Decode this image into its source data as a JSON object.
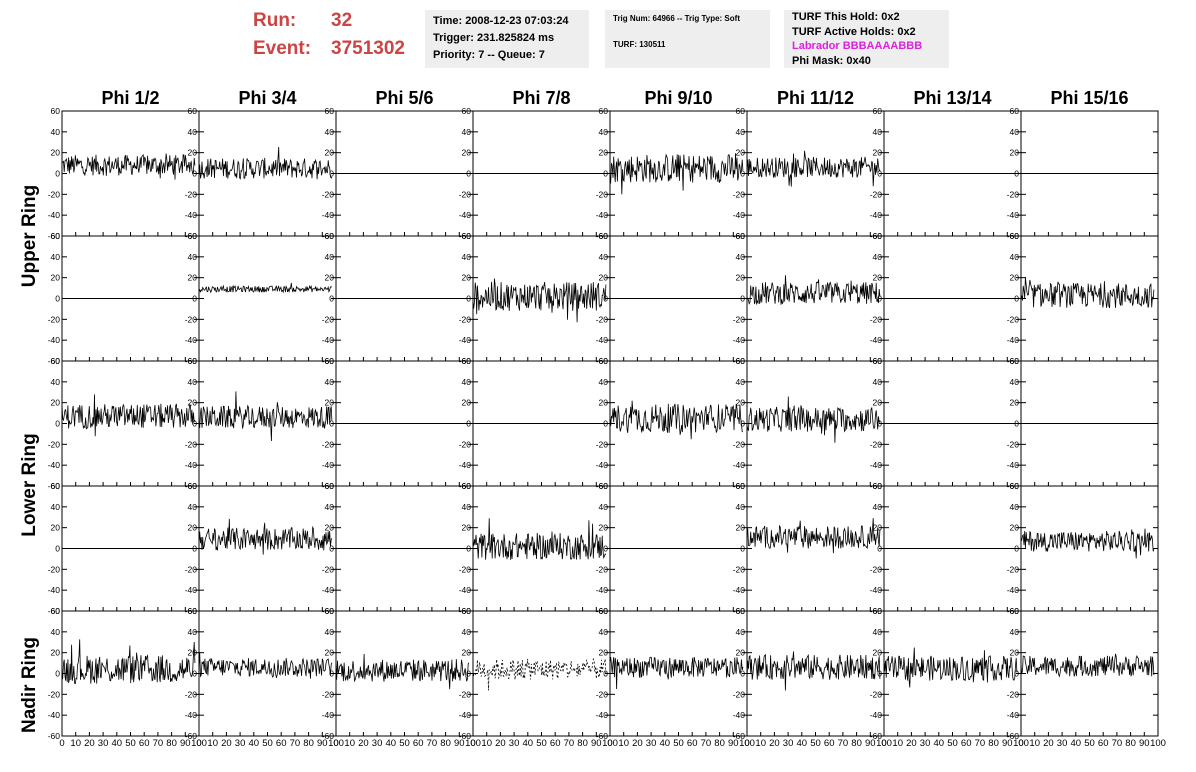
{
  "header": {
    "run_label": "Run:",
    "run_value": "32",
    "event_label": "Event:",
    "event_value": "3751302",
    "time": "Time: 2008-12-23 07:03:24",
    "trigger": "Trigger: 231.825824 ms",
    "priority": "Priority: 7 -- Queue: 7",
    "trig_num": "Trig Num: 64966 -- Trig Type: Soft",
    "turf": "TURF: 130511",
    "turf_this_hold": "TURF This Hold: 0x2",
    "turf_active_holds": "TURF Active Holds: 0x2",
    "labrador": "Labrador BBBAAAABBB",
    "phi_mask": "Phi Mask: 0x40"
  },
  "colors": {
    "run_text": "#cc4444",
    "labrador_text": "#e020e0",
    "info_background": "#eeeeee",
    "trace": "#000000"
  },
  "chart_data": {
    "type": "line",
    "columns": [
      "Phi 1/2",
      "Phi 3/4",
      "Phi 5/6",
      "Phi 7/8",
      "Phi 9/10",
      "Phi 11/12",
      "Phi 13/14",
      "Phi 15/16"
    ],
    "rows": [
      "Upper Ring",
      "Lower Ring",
      "Nadir Ring"
    ],
    "ylim": [
      -60,
      60
    ],
    "xlim": [
      0,
      100
    ],
    "y_ticks": [
      -60,
      -40,
      -20,
      0,
      20,
      40,
      60
    ],
    "x_ticks": [
      0,
      10,
      20,
      30,
      40,
      50,
      60,
      70,
      80,
      90,
      100
    ],
    "grid": false,
    "active": [
      [
        1,
        1,
        0,
        0,
        1,
        1,
        0,
        0
      ],
      [
        0,
        1,
        0,
        1,
        0,
        1,
        0,
        1
      ],
      [
        1,
        1,
        0,
        0,
        1,
        1,
        0,
        0
      ],
      [
        0,
        1,
        0,
        1,
        0,
        1,
        0,
        1
      ],
      [
        1,
        1,
        1,
        1,
        1,
        1,
        1,
        1
      ]
    ],
    "panel_mean": [
      [
        8,
        5,
        0,
        0,
        5,
        6,
        0,
        0
      ],
      [
        0,
        9,
        0,
        2,
        0,
        5,
        0,
        3
      ],
      [
        7,
        6,
        0,
        0,
        5,
        4,
        0,
        0
      ],
      [
        0,
        9,
        0,
        2,
        0,
        11,
        0,
        7
      ],
      [
        4,
        6,
        3,
        4,
        6,
        6,
        5,
        7
      ]
    ],
    "panel_amplitude": [
      [
        10,
        10,
        0,
        0,
        14,
        10,
        0,
        0
      ],
      [
        0,
        3,
        0,
        14,
        0,
        11,
        0,
        12
      ],
      [
        12,
        11,
        0,
        0,
        14,
        12,
        0,
        0
      ],
      [
        0,
        11,
        0,
        13,
        0,
        11,
        0,
        10
      ],
      [
        14,
        9,
        11,
        10,
        10,
        12,
        12,
        10
      ]
    ],
    "dashed_panels": [
      [
        4,
        3
      ]
    ]
  }
}
